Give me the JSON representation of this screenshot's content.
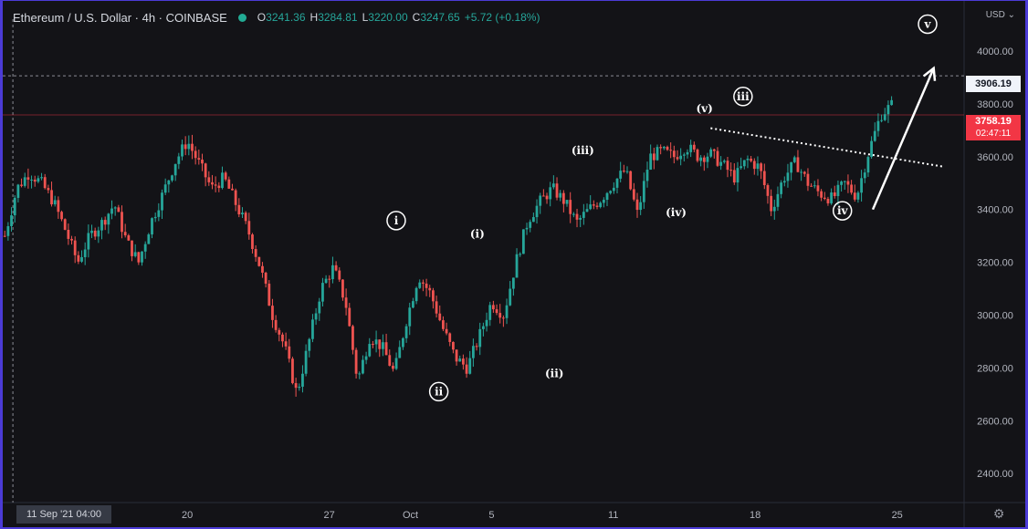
{
  "legend": {
    "symbol": "Ethereum / U.S. Dollar · 4h · COINBASE",
    "open_key": "O",
    "open": "3241.36",
    "high_key": "H",
    "high": "3284.81",
    "low_key": "L",
    "low": "3220.00",
    "close_key": "C",
    "close": "3247.65",
    "change": "+5.72 (+0.18%)"
  },
  "currency": "USD",
  "crosshair_price": "3906.19",
  "last_price": "3758.19",
  "countdown": "02:47:11",
  "crosshair_date": "11 Sep '21  04:00",
  "colors": {
    "up": "#26a69a",
    "down": "#ef5350",
    "background": "#131317",
    "frame": "#4b3bd6",
    "annotation": "#ffffff",
    "last_price": "#f23645"
  },
  "icons": {
    "settings": "gear-icon"
  },
  "chart_data": {
    "type": "candlestick",
    "y_ticks": [
      "2400.00",
      "2600.00",
      "2800.00",
      "3000.00",
      "3200.00",
      "3400.00",
      "3600.00",
      "3800.00",
      "4000.00"
    ],
    "x_ticks": [
      {
        "label": "20",
        "day": 20
      },
      {
        "label": "27",
        "day": 27
      },
      {
        "label": "Oct",
        "day": 31
      },
      {
        "label": "5",
        "day": 35
      },
      {
        "label": "11",
        "day": 41
      },
      {
        "label": "18",
        "day": 48
      },
      {
        "label": "25",
        "day": 55
      }
    ],
    "ylim": [
      2290,
      4190
    ],
    "xlim_days": [
      10.9,
      58.3
    ],
    "grid": false,
    "path": [
      [
        11.0,
        3300
      ],
      [
        11.6,
        3480
      ],
      [
        12.2,
        3540
      ],
      [
        12.8,
        3500
      ],
      [
        13.4,
        3430
      ],
      [
        14.0,
        3320
      ],
      [
        14.6,
        3200
      ],
      [
        15.2,
        3300
      ],
      [
        15.8,
        3350
      ],
      [
        16.4,
        3420
      ],
      [
        17.0,
        3280
      ],
      [
        17.6,
        3200
      ],
      [
        18.2,
        3350
      ],
      [
        18.8,
        3460
      ],
      [
        19.4,
        3580
      ],
      [
        20.0,
        3660
      ],
      [
        20.6,
        3570
      ],
      [
        21.2,
        3480
      ],
      [
        21.8,
        3520
      ],
      [
        22.4,
        3420
      ],
      [
        23.0,
        3320
      ],
      [
        23.6,
        3180
      ],
      [
        24.2,
        3000
      ],
      [
        24.8,
        2880
      ],
      [
        25.4,
        2700
      ],
      [
        26.0,
        2900
      ],
      [
        26.6,
        3100
      ],
      [
        27.2,
        3180
      ],
      [
        27.8,
        3050
      ],
      [
        28.4,
        2750
      ],
      [
        29.0,
        2920
      ],
      [
        29.6,
        2880
      ],
      [
        30.2,
        2780
      ],
      [
        30.8,
        2980
      ],
      [
        31.4,
        3150
      ],
      [
        32.0,
        3080
      ],
      [
        32.6,
        2950
      ],
      [
        33.2,
        2840
      ],
      [
        33.8,
        2800
      ],
      [
        34.4,
        2920
      ],
      [
        35.0,
        3050
      ],
      [
        35.6,
        3000
      ],
      [
        36.2,
        3200
      ],
      [
        36.8,
        3360
      ],
      [
        37.4,
        3430
      ],
      [
        38.0,
        3480
      ],
      [
        38.6,
        3430
      ],
      [
        39.2,
        3350
      ],
      [
        39.8,
        3400
      ],
      [
        40.4,
        3440
      ],
      [
        41.0,
        3500
      ],
      [
        41.6,
        3550
      ],
      [
        42.2,
        3380
      ],
      [
        42.8,
        3600
      ],
      [
        43.4,
        3620
      ],
      [
        44.0,
        3600
      ],
      [
        44.6,
        3640
      ],
      [
        45.2,
        3600
      ],
      [
        45.8,
        3610
      ],
      [
        46.4,
        3570
      ],
      [
        47.0,
        3520
      ],
      [
        47.6,
        3590
      ],
      [
        48.2,
        3560
      ],
      [
        48.8,
        3400
      ],
      [
        49.4,
        3520
      ],
      [
        50.0,
        3580
      ],
      [
        50.6,
        3500
      ],
      [
        51.2,
        3460
      ],
      [
        51.8,
        3440
      ],
      [
        52.4,
        3500
      ],
      [
        53.0,
        3450
      ],
      [
        53.6,
        3620
      ],
      [
        54.2,
        3760
      ],
      [
        54.8,
        3800
      ]
    ],
    "wave_labels": [
      {
        "text": "i",
        "day": 30.3,
        "price": 3358,
        "circled": true
      },
      {
        "text": "ii",
        "day": 32.4,
        "price": 2710,
        "circled": true
      },
      {
        "text": "(i)",
        "day": 34.3,
        "price": 3308,
        "circled": false
      },
      {
        "text": "(ii)",
        "day": 38.1,
        "price": 2778,
        "circled": false
      },
      {
        "text": "(iii)",
        "day": 39.5,
        "price": 3623,
        "circled": false
      },
      {
        "text": "(iv)",
        "day": 44.1,
        "price": 3388,
        "circled": false
      },
      {
        "text": "(v)",
        "day": 45.5,
        "price": 3783,
        "circled": false
      },
      {
        "text": "iii",
        "day": 47.4,
        "price": 3828,
        "circled": true
      },
      {
        "text": "iv",
        "day": 52.3,
        "price": 3395,
        "circled": true
      },
      {
        "text": "v",
        "day": 56.5,
        "price": 4102,
        "circled": true
      }
    ],
    "trendline": [
      [
        45.8,
        3708
      ],
      [
        57.3,
        3562
      ]
    ],
    "arrow": [
      [
        53.8,
        3400
      ],
      [
        56.8,
        3935
      ]
    ]
  }
}
